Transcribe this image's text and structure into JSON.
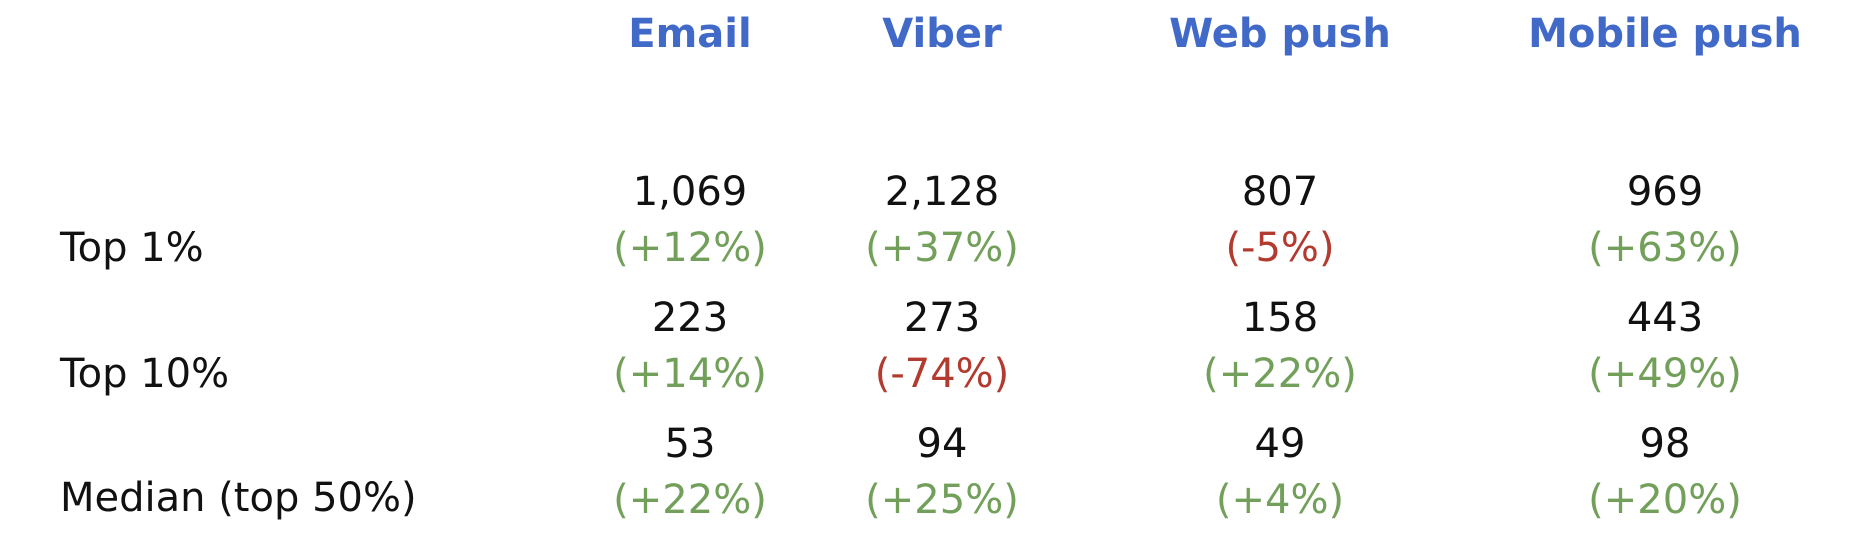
{
  "columns": [
    "Email",
    "Viber",
    "Web push",
    "Mobile push"
  ],
  "rows": [
    {
      "label": "Top 1%",
      "cells": [
        {
          "value": "1,069",
          "change": "(+12%)",
          "trend": "positive"
        },
        {
          "value": "2,128",
          "change": "(+37%)",
          "trend": "positive"
        },
        {
          "value": "807",
          "change": "(-5%)",
          "trend": "negative"
        },
        {
          "value": "969",
          "change": "(+63%)",
          "trend": "positive"
        }
      ]
    },
    {
      "label": "Top 10%",
      "cells": [
        {
          "value": "223",
          "change": "(+14%)",
          "trend": "positive"
        },
        {
          "value": "273",
          "change": "(-74%)",
          "trend": "negative"
        },
        {
          "value": "158",
          "change": "(+22%)",
          "trend": "positive"
        },
        {
          "value": "443",
          "change": "(+49%)",
          "trend": "positive"
        }
      ]
    },
    {
      "label": "Median (top 50%)",
      "cells": [
        {
          "value": "53",
          "change": "(+22%)",
          "trend": "positive"
        },
        {
          "value": "94",
          "change": "(+25%)",
          "trend": "positive"
        },
        {
          "value": "49",
          "change": "(+4%)",
          "trend": "positive"
        },
        {
          "value": "98",
          "change": "(+20%)",
          "trend": "positive"
        }
      ]
    }
  ],
  "colors": {
    "header": "#4169c8",
    "positive": "#72a05a",
    "negative": "#b33a2e",
    "text": "#111111"
  }
}
